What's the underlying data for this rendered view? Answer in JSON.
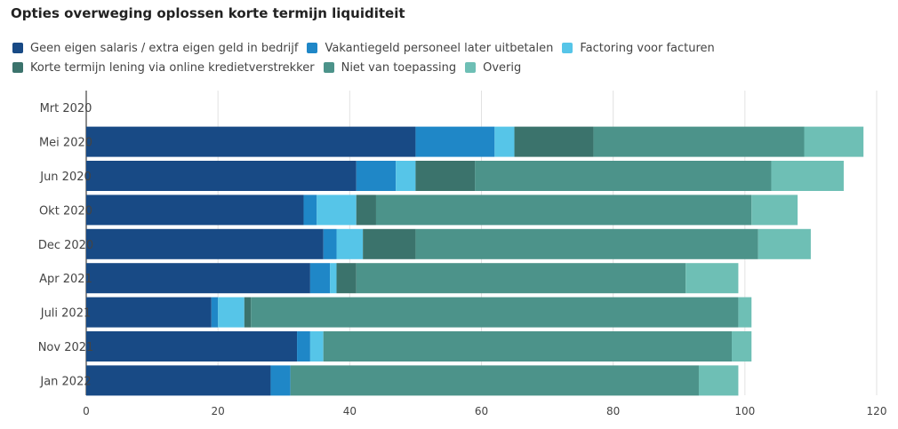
{
  "chart_data": {
    "type": "bar",
    "orientation": "horizontal",
    "stacked": true,
    "title": "Opties overweging oplossen korte termijn liquiditeit",
    "xlabel": "",
    "ylabel": "",
    "xlim": [
      0,
      120
    ],
    "xticks": [
      0,
      20,
      40,
      60,
      80,
      100,
      120
    ],
    "grid": true,
    "legend_position": "top-left",
    "categories": [
      "Mrt 2020",
      "Mei 2020",
      "Jun 2020",
      "Okt 2020",
      "Dec 2020",
      "Apr 2021",
      "Juli 2021",
      "Nov 2021",
      "Jan 2022"
    ],
    "series": [
      {
        "name": "Geen eigen salaris / extra eigen geld in bedrijf",
        "color": "#184a85",
        "values": [
          0,
          50,
          41,
          33,
          36,
          34,
          19,
          32,
          28
        ]
      },
      {
        "name": "Vakantiegeld personeel later uitbetalen",
        "color": "#1f87c7",
        "values": [
          0,
          12,
          6,
          2,
          2,
          3,
          1,
          2,
          3
        ]
      },
      {
        "name": "Factoring voor facturen",
        "color": "#56c5e8",
        "values": [
          0,
          3,
          3,
          6,
          4,
          1,
          4,
          2,
          0
        ]
      },
      {
        "name": "Korte termijn lening via online kredietverstrekker",
        "color": "#3b736c",
        "values": [
          0,
          12,
          9,
          3,
          8,
          3,
          1,
          0,
          0
        ]
      },
      {
        "name": "Niet van toepassing",
        "color": "#4c938a",
        "values": [
          0,
          32,
          45,
          57,
          52,
          50,
          74,
          62,
          62
        ]
      },
      {
        "name": "Overig",
        "color": "#6ebfb5",
        "values": [
          0,
          9,
          11,
          7,
          8,
          8,
          2,
          3,
          6
        ]
      }
    ]
  }
}
